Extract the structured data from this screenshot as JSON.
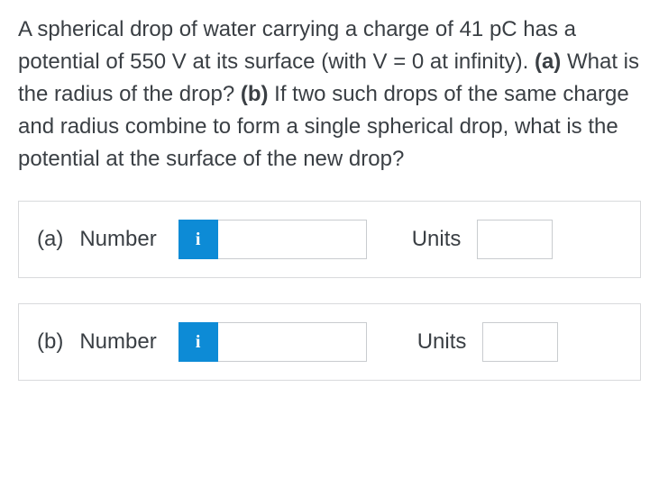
{
  "question": {
    "text_parts": {
      "p1": "A spherical drop of water carrying a charge of 41 pC has a potential of 550 V at its surface (with V = 0 at infinity). ",
      "a_label": "(a)",
      "p2": " What is the radius of the drop? ",
      "b_label": "(b)",
      "p3": " If two such drops of the same charge and radius combine to form a single spherical drop, what is the potential at the surface of the new drop?"
    }
  },
  "answers": {
    "a": {
      "part_letter": "(a)",
      "label": "Number",
      "info_badge": "i",
      "number_value": "",
      "units_label": "Units",
      "units_value": ""
    },
    "b": {
      "part_letter": "(b)",
      "label": "Number",
      "info_badge": "i",
      "number_value": "",
      "units_label": "Units",
      "units_value": ""
    }
  },
  "style": {
    "text_color": "#3a3f44",
    "border_color": "#d8dadc",
    "input_border": "#c9cccf",
    "badge_bg": "#0d8bd6",
    "badge_fg": "#ffffff",
    "font_size_body": 24,
    "font_size_badge": 20
  }
}
